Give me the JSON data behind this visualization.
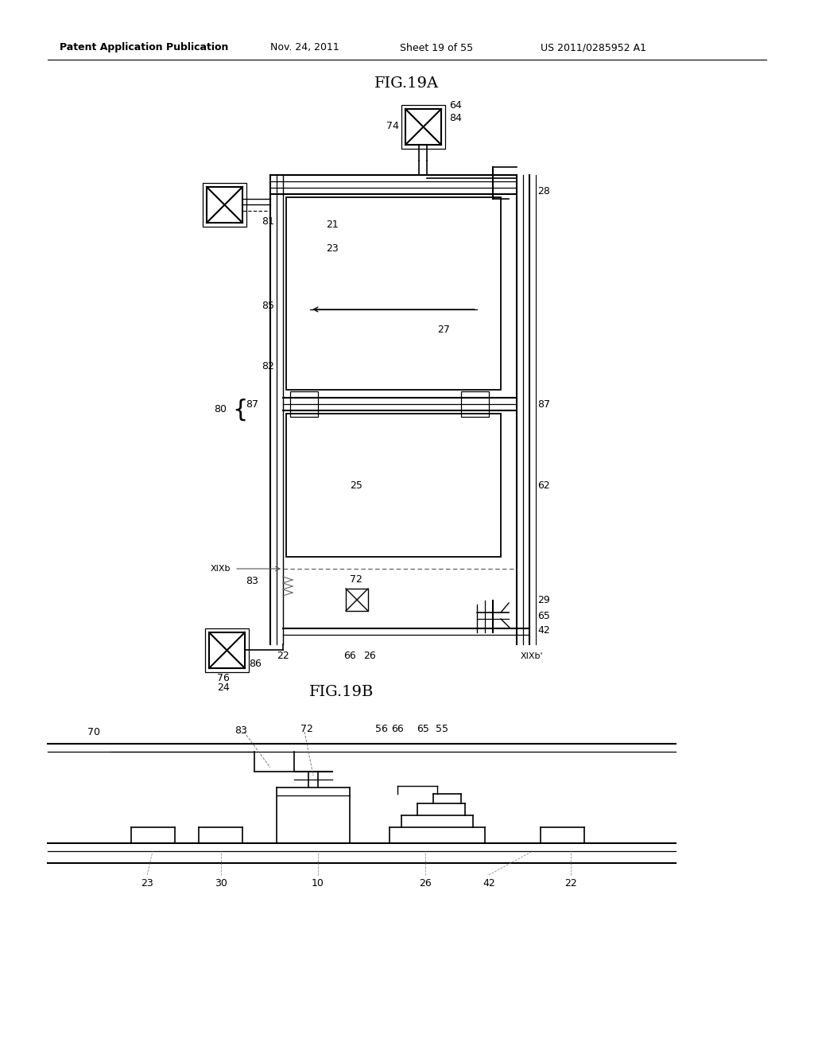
{
  "title_header": "Patent Application Publication",
  "date_header": "Nov. 24, 2011",
  "sheet_header": "Sheet 19 of 55",
  "patent_header": "US 2011/0285952 A1",
  "fig19a_title": "FIG.19A",
  "fig19b_title": "FIG.19B",
  "bg_color": "#ffffff",
  "line_color": "#000000",
  "text_color": "#000000"
}
